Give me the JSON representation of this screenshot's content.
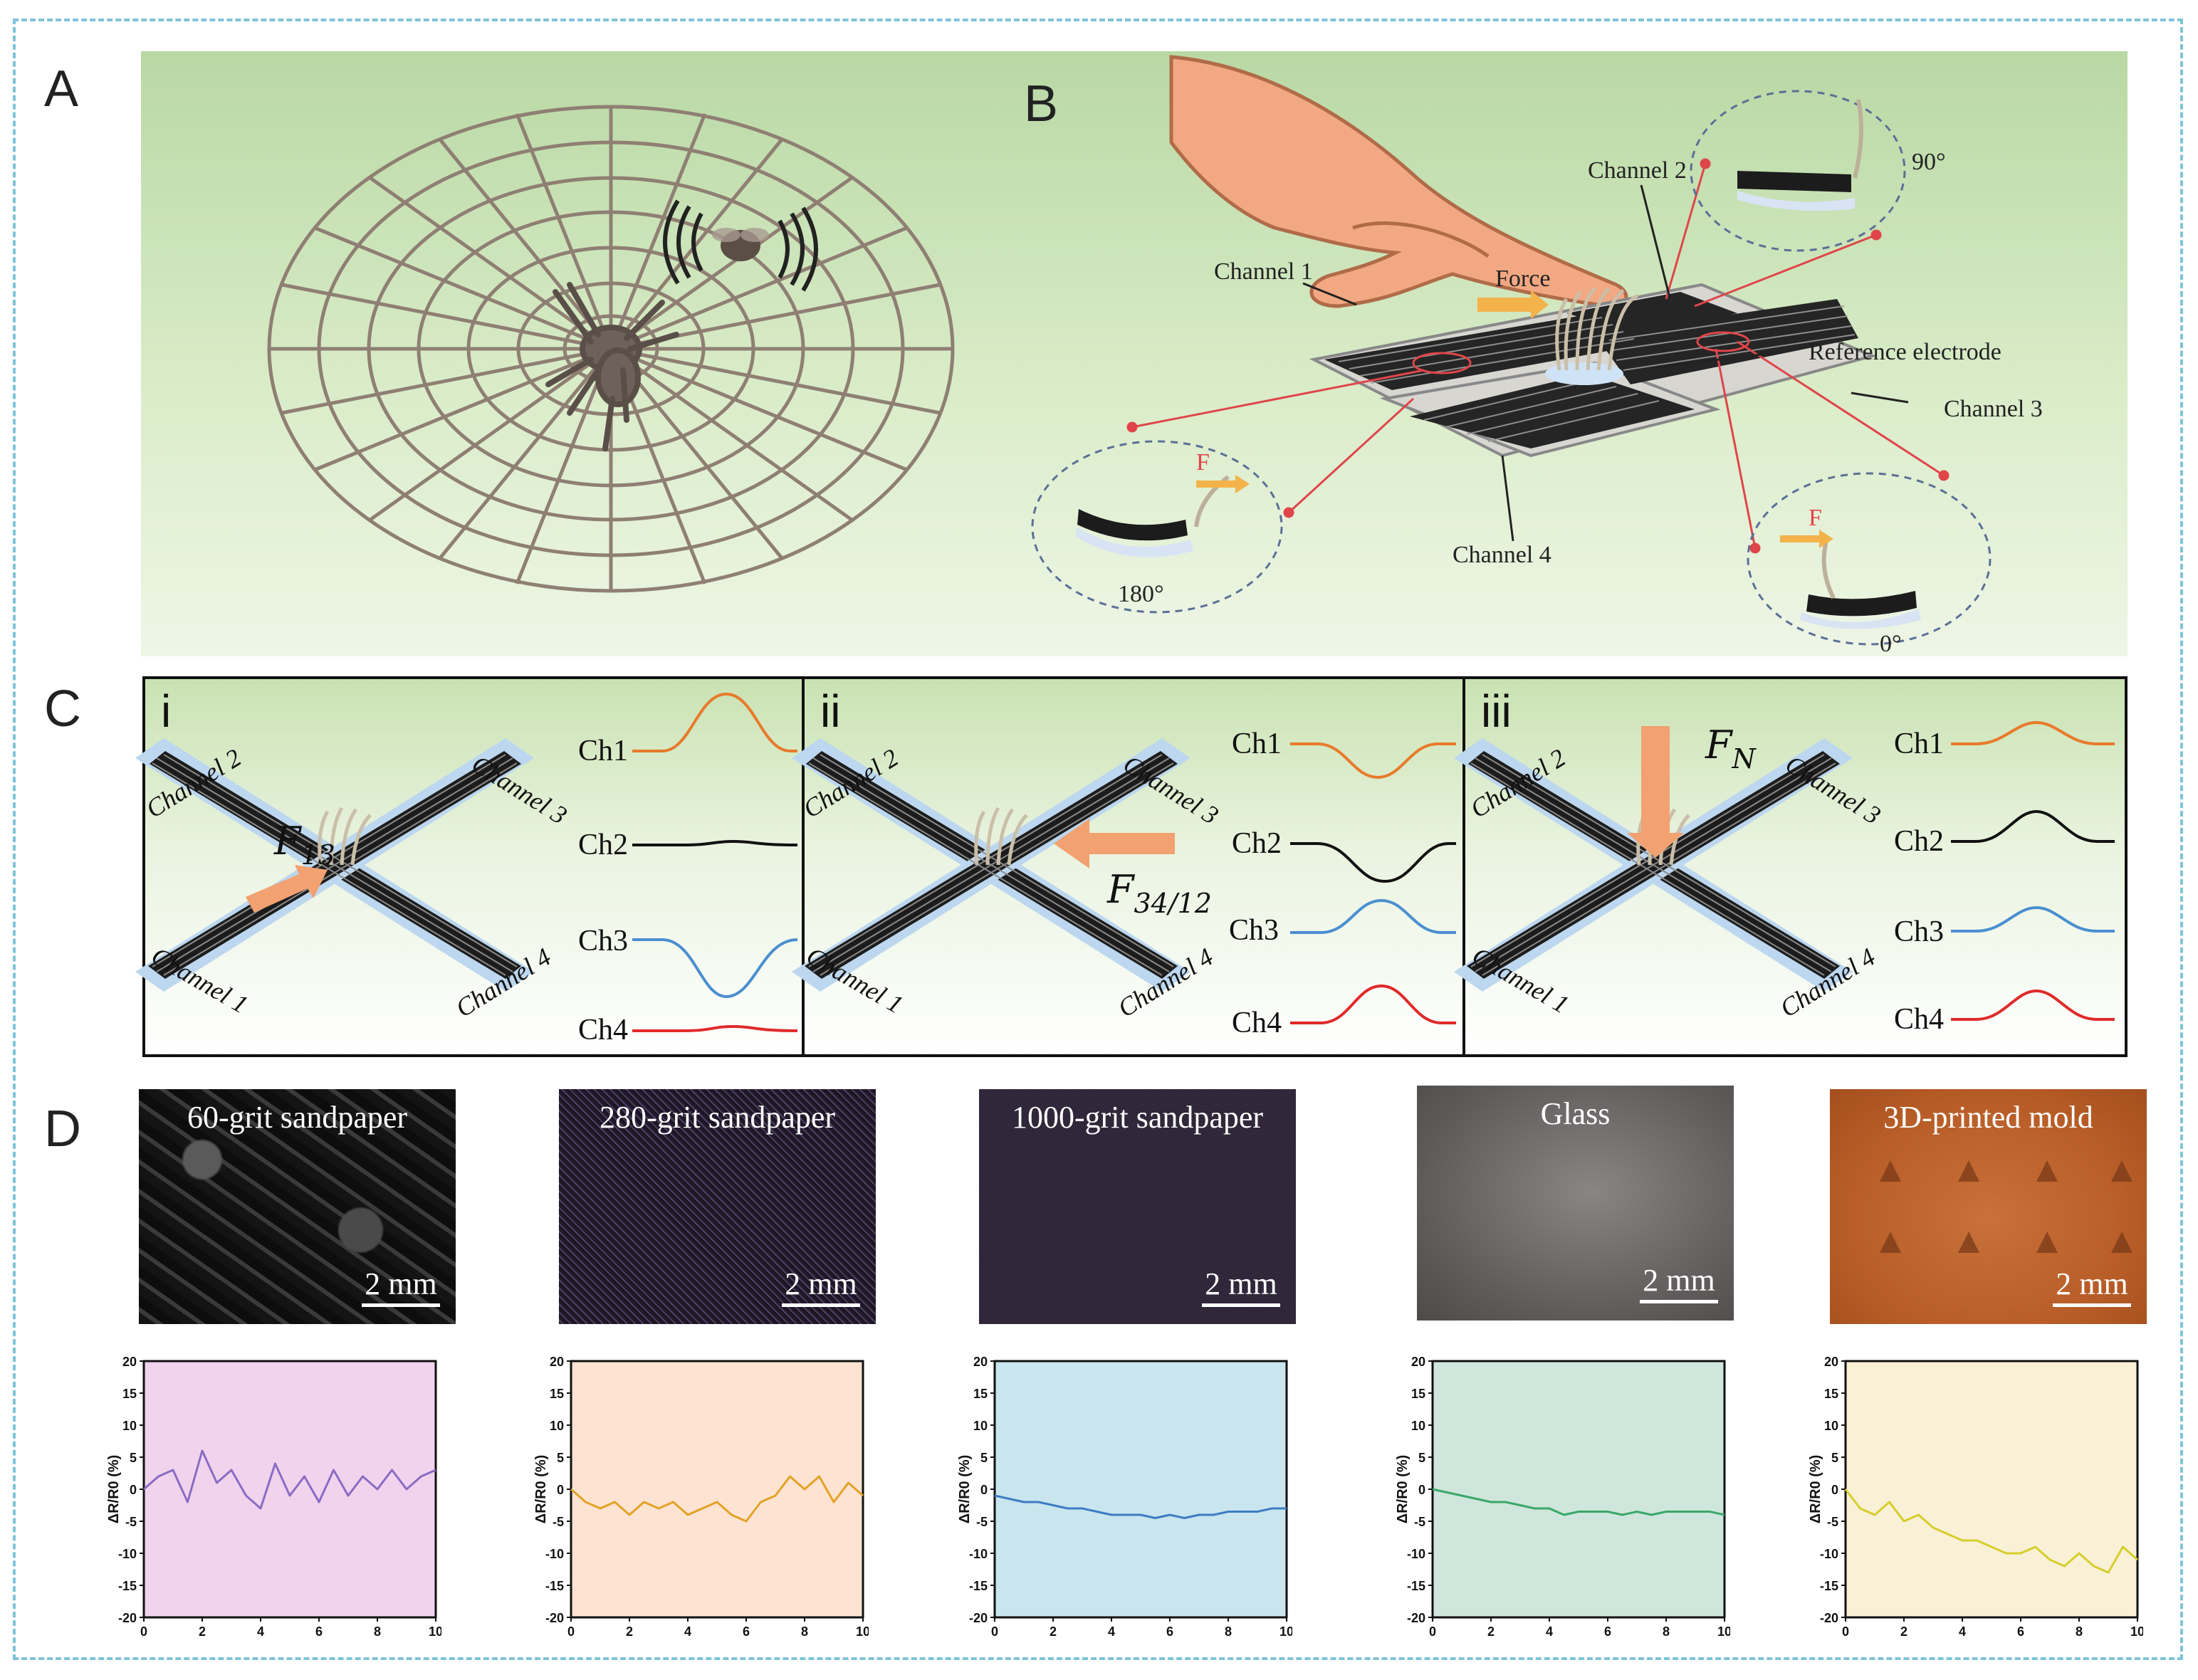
{
  "panel_labels": {
    "a": "A",
    "b": "B",
    "c": "C",
    "d": "D"
  },
  "panel_b": {
    "channel_1": "Channel 1",
    "channel_2": "Channel 2",
    "channel_3": "Channel 3",
    "channel_4": "Channel 4",
    "reference": "Reference electrode",
    "force": "Force",
    "f_label": "F",
    "angle_90": "90°",
    "angle_180": "180°",
    "angle_0": "0°"
  },
  "panel_c": {
    "subpanels": [
      {
        "roman": "i",
        "force_label": "F",
        "force_sub": "13",
        "signals": [
          "Ch1",
          "Ch2",
          "Ch3",
          "Ch4"
        ]
      },
      {
        "roman": "ii",
        "force_label": "F",
        "force_sub": "34/12",
        "signals": [
          "Ch1",
          "Ch2",
          "Ch3",
          "Ch4"
        ]
      },
      {
        "roman": "iii",
        "force_label": "F",
        "force_sub": "N",
        "signals": [
          "Ch1",
          "Ch2",
          "Ch3",
          "Ch4"
        ]
      }
    ],
    "x_channels": [
      "Channel 1",
      "Channel 2",
      "Channel 3",
      "Channel 4"
    ],
    "signal_colors": [
      "#e87a2a",
      "#111111",
      "#4a8fd0",
      "#e02a2a"
    ]
  },
  "panel_d": {
    "textures": [
      {
        "title": "60-grit sandpaper",
        "scale": "2 mm"
      },
      {
        "title": "280-grit sandpaper",
        "scale": "2 mm"
      },
      {
        "title": "1000-grit sandpaper",
        "scale": "2 mm"
      },
      {
        "title": "Glass",
        "scale": "2 mm"
      },
      {
        "title": "3D-printed mold",
        "scale": "2 mm"
      }
    ]
  },
  "chart_data": [
    {
      "type": "line",
      "title": "60-grit sandpaper",
      "ylabel": "ΔR/R0 (%)",
      "xlabel": "",
      "xlim": [
        0,
        10
      ],
      "ylim": [
        -20,
        20
      ],
      "xticks": [
        "0",
        "2",
        "4",
        "6",
        "8",
        "10"
      ],
      "yticks": [
        "20",
        "15",
        "10",
        "5",
        "0",
        "-5",
        "-10",
        "-15",
        "-20"
      ],
      "bg": "#f1d3ee",
      "color": "#8a6cc4",
      "x": [
        0,
        0.5,
        1,
        1.5,
        2,
        2.5,
        3,
        3.5,
        4,
        4.5,
        5,
        5.5,
        6,
        6.5,
        7,
        7.5,
        8,
        8.5,
        9,
        9.5,
        10
      ],
      "y": [
        0,
        2,
        3,
        -2,
        6,
        1,
        3,
        -1,
        -3,
        4,
        -1,
        2,
        -2,
        3,
        -1,
        2,
        0,
        3,
        0,
        2,
        3
      ]
    },
    {
      "type": "line",
      "title": "280-grit sandpaper",
      "ylabel": "ΔR/R0 (%)",
      "xlabel": "",
      "xlim": [
        0,
        10
      ],
      "ylim": [
        -20,
        20
      ],
      "xticks": [
        "0",
        "2",
        "4",
        "6",
        "8",
        "10"
      ],
      "yticks": [
        "20",
        "15",
        "10",
        "5",
        "0",
        "-5",
        "-10",
        "-15",
        "-20"
      ],
      "bg": "#fde3d2",
      "color": "#e3a325",
      "x": [
        0,
        0.5,
        1,
        1.5,
        2,
        2.5,
        3,
        3.5,
        4,
        4.5,
        5,
        5.5,
        6,
        6.5,
        7,
        7.5,
        8,
        8.5,
        9,
        9.5,
        10
      ],
      "y": [
        0,
        -2,
        -3,
        -2,
        -4,
        -2,
        -3,
        -2,
        -4,
        -3,
        -2,
        -4,
        -5,
        -2,
        -1,
        2,
        0,
        2,
        -2,
        1,
        -1
      ]
    },
    {
      "type": "line",
      "title": "1000-grit sandpaper",
      "ylabel": "ΔR/R0 (%)",
      "xlabel": "",
      "xlim": [
        0,
        10
      ],
      "ylim": [
        -20,
        20
      ],
      "xticks": [
        "0",
        "2",
        "4",
        "6",
        "8",
        "10"
      ],
      "yticks": [
        "20",
        "15",
        "10",
        "5",
        "0",
        "-5",
        "-10",
        "-15",
        "-20"
      ],
      "bg": "#c9e5ee",
      "color": "#3e7cc4",
      "x": [
        0,
        0.5,
        1,
        1.5,
        2,
        2.5,
        3,
        3.5,
        4,
        4.5,
        5,
        5.5,
        6,
        6.5,
        7,
        7.5,
        8,
        8.5,
        9,
        9.5,
        10
      ],
      "y": [
        -1,
        -1.5,
        -2,
        -2,
        -2.5,
        -3,
        -3,
        -3.5,
        -4,
        -4,
        -4,
        -4.5,
        -4,
        -4.5,
        -4,
        -4,
        -3.5,
        -3.5,
        -3.5,
        -3,
        -3
      ]
    },
    {
      "type": "line",
      "title": "Glass",
      "ylabel": "ΔR/R0 (%)",
      "xlabel": "",
      "xlim": [
        0,
        10
      ],
      "ylim": [
        -20,
        20
      ],
      "xticks": [
        "0",
        "2",
        "4",
        "6",
        "8",
        "10"
      ],
      "yticks": [
        "20",
        "15",
        "10",
        "5",
        "0",
        "-5",
        "-10",
        "-15",
        "-20"
      ],
      "bg": "#cfe6dc",
      "color": "#3aa86a",
      "x": [
        0,
        0.5,
        1,
        1.5,
        2,
        2.5,
        3,
        3.5,
        4,
        4.5,
        5,
        5.5,
        6,
        6.5,
        7,
        7.5,
        8,
        8.5,
        9,
        9.5,
        10
      ],
      "y": [
        0,
        -0.5,
        -1,
        -1.5,
        -2,
        -2,
        -2.5,
        -3,
        -3,
        -4,
        -3.5,
        -3.5,
        -3.5,
        -4,
        -3.5,
        -4,
        -3.5,
        -3.5,
        -3.5,
        -3.5,
        -4
      ]
    },
    {
      "type": "line",
      "title": "3D-printed mold",
      "ylabel": "ΔR/R0 (%)",
      "xlabel": "",
      "xlim": [
        0,
        10
      ],
      "ylim": [
        -20,
        20
      ],
      "xticks": [
        "0",
        "2",
        "4",
        "6",
        "8",
        "10"
      ],
      "yticks": [
        "20",
        "15",
        "10",
        "5",
        "0",
        "-5",
        "-10",
        "-15",
        "-20"
      ],
      "bg": "#f8f1d6",
      "color": "#d6ce2a",
      "x": [
        0,
        0.5,
        1,
        1.5,
        2,
        2.5,
        3,
        3.5,
        4,
        4.5,
        5,
        5.5,
        6,
        6.5,
        7,
        7.5,
        8,
        8.5,
        9,
        9.5,
        10
      ],
      "y": [
        0,
        -3,
        -4,
        -2,
        -5,
        -4,
        -6,
        -7,
        -8,
        -8,
        -9,
        -10,
        -10,
        -9,
        -11,
        -12,
        -10,
        -12,
        -13,
        -9,
        -11
      ]
    }
  ]
}
